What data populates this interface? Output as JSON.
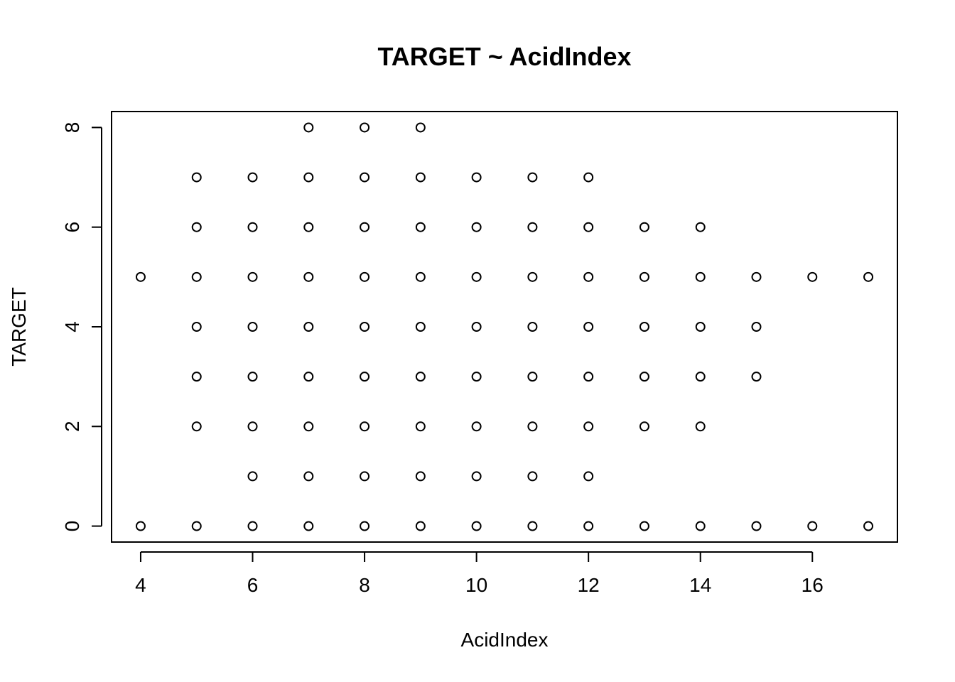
{
  "chart_data": {
    "type": "scatter",
    "title": "TARGET ~ AcidIndex",
    "xlabel": "AcidIndex",
    "ylabel": "TARGET",
    "xlim": [
      3.48,
      17.52
    ],
    "ylim": [
      -0.32,
      8.32
    ],
    "xticks": [
      4,
      6,
      8,
      10,
      12,
      14,
      16
    ],
    "yticks": [
      0,
      2,
      4,
      6,
      8
    ],
    "marker": "open-circle",
    "color": "#000000",
    "points_by_x": [
      {
        "x": 4,
        "y": [
          0,
          5
        ]
      },
      {
        "x": 5,
        "y": [
          0,
          2,
          3,
          4,
          5,
          6,
          7
        ]
      },
      {
        "x": 6,
        "y": [
          0,
          1,
          2,
          3,
          4,
          5,
          6,
          7
        ]
      },
      {
        "x": 7,
        "y": [
          0,
          1,
          2,
          3,
          4,
          5,
          6,
          7,
          8
        ]
      },
      {
        "x": 8,
        "y": [
          0,
          1,
          2,
          3,
          4,
          5,
          6,
          7,
          8
        ]
      },
      {
        "x": 9,
        "y": [
          0,
          1,
          2,
          3,
          4,
          5,
          6,
          7,
          8
        ]
      },
      {
        "x": 10,
        "y": [
          0,
          1,
          2,
          3,
          4,
          5,
          6,
          7
        ]
      },
      {
        "x": 11,
        "y": [
          0,
          1,
          2,
          3,
          4,
          5,
          6,
          7
        ]
      },
      {
        "x": 12,
        "y": [
          0,
          1,
          2,
          3,
          4,
          5,
          6,
          7
        ]
      },
      {
        "x": 13,
        "y": [
          0,
          2,
          3,
          4,
          5,
          6
        ]
      },
      {
        "x": 14,
        "y": [
          0,
          2,
          3,
          4,
          5,
          6
        ]
      },
      {
        "x": 15,
        "y": [
          0,
          3,
          4,
          5
        ]
      },
      {
        "x": 16,
        "y": [
          0,
          5
        ]
      },
      {
        "x": 17,
        "y": [
          0,
          5
        ]
      }
    ]
  }
}
